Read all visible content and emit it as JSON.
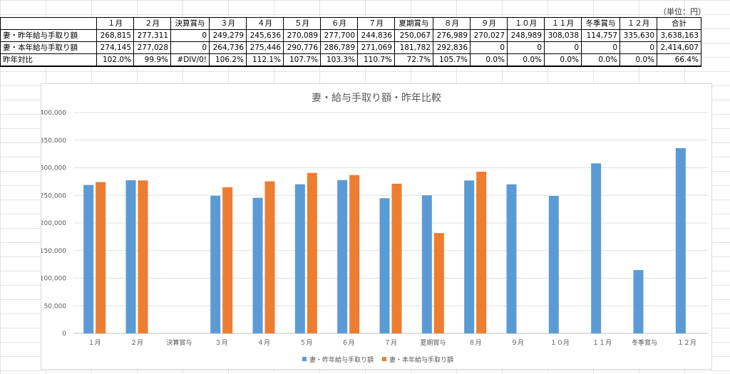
{
  "unit_note": "（単位：円）",
  "table": {
    "headers": [
      "",
      "１月",
      "２月",
      "決算賞与",
      "３月",
      "４月",
      "５月",
      "６月",
      "７月",
      "夏期賞与",
      "８月",
      "９月",
      "１０月",
      "１１月",
      "冬季賞与",
      "１２月",
      "合計"
    ],
    "rows": [
      {
        "label": "妻・昨年給与手取り額",
        "cells": [
          "268,815",
          "277,311",
          "0",
          "249,279",
          "245,636",
          "270,089",
          "277,700",
          "244,836",
          "250,067",
          "276,989",
          "270,027",
          "248,989",
          "308,038",
          "114,757",
          "335,630",
          "3,638,163"
        ]
      },
      {
        "label": "妻・本年給与手取り額",
        "cells": [
          "274,145",
          "277,028",
          "0",
          "264,736",
          "275,446",
          "290,776",
          "286,789",
          "271,069",
          "181,782",
          "292,836",
          "0",
          "0",
          "0",
          "0",
          "0",
          "2,414,607"
        ]
      },
      {
        "label": "昨年対比",
        "cells": [
          "102.0%",
          "99.9%",
          "#DIV/0!",
          "106.2%",
          "112.1%",
          "107.7%",
          "103.3%",
          "110.7%",
          "72.7%",
          "105.7%",
          "0.0%",
          "0.0%",
          "0.0%",
          "0.0%",
          "0.0%",
          "66.4%"
        ]
      }
    ]
  },
  "chart_data": {
    "type": "bar",
    "title": "妻・給与手取り額・昨年比較",
    "categories": [
      "１月",
      "２月",
      "決算賞与",
      "３月",
      "４月",
      "５月",
      "６月",
      "７月",
      "夏期賞与",
      "８月",
      "９月",
      "１０月",
      "１１月",
      "冬季賞与",
      "１２月"
    ],
    "series": [
      {
        "name": "妻・昨年給与手取り額",
        "color": "#5B9BD5",
        "values": [
          268815,
          277311,
          0,
          249279,
          245636,
          270089,
          277700,
          244836,
          250067,
          276989,
          270027,
          248989,
          308038,
          114757,
          335630
        ]
      },
      {
        "name": "妻・本年給与手取り額",
        "color": "#ED7D31",
        "values": [
          274145,
          277028,
          0,
          264736,
          275446,
          290776,
          286789,
          271069,
          181782,
          292836,
          0,
          0,
          0,
          0,
          0
        ]
      }
    ],
    "ylim": [
      0,
      400000
    ],
    "yticks": [
      "0",
      "50,000",
      "100,000",
      "150,000",
      "200,000",
      "250,000",
      "300,000",
      "350,000",
      "400,000"
    ],
    "grid": true,
    "legend_position": "bottom"
  }
}
